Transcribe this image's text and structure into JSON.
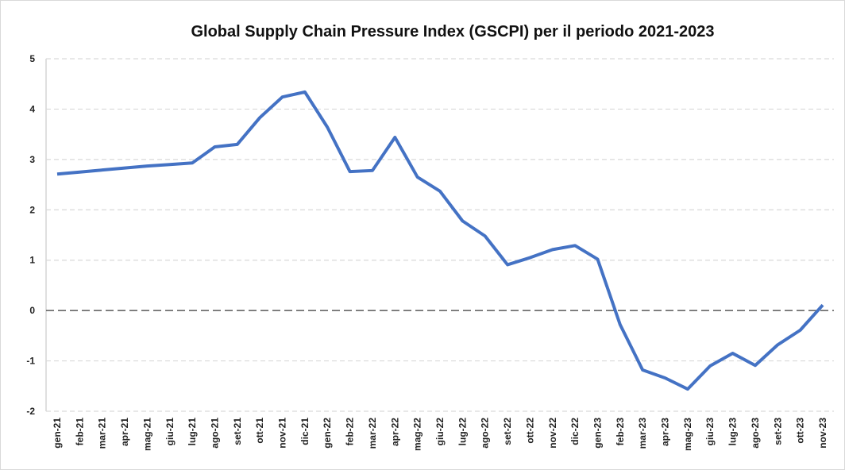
{
  "chart_data": {
    "type": "line",
    "title": "Global Supply Chain Pressure Index (GSCPI) per il periodo 2021-2023",
    "categories": [
      "gen-21",
      "feb-21",
      "mar-21",
      "apr-21",
      "mag-21",
      "giu-21",
      "lug-21",
      "ago-21",
      "set-21",
      "ott-21",
      "nov-21",
      "dic-21",
      "gen-22",
      "feb-22",
      "mar-22",
      "apr-22",
      "mag-22",
      "giu-22",
      "lug-22",
      "ago-22",
      "set-22",
      "ott-22",
      "nov-22",
      "dic-22",
      "gen-23",
      "feb-23",
      "mar-23",
      "apr-23",
      "mag-23",
      "giu-23",
      "lug-23",
      "ago-23",
      "set-23",
      "ott-23",
      "nov-23"
    ],
    "series": [
      {
        "name": "GSCPI",
        "color": "#4472c4",
        "values": [
          2.71,
          2.75,
          2.79,
          2.83,
          2.87,
          2.9,
          2.93,
          3.25,
          3.3,
          3.83,
          4.24,
          4.34,
          3.64,
          2.76,
          2.78,
          3.44,
          2.65,
          2.37,
          1.78,
          1.48,
          0.91,
          1.05,
          1.21,
          1.29,
          1.02,
          -0.28,
          -1.18,
          -1.34,
          -1.56,
          -1.1,
          -0.85,
          -1.09,
          -0.68,
          -0.39,
          0.11
        ]
      }
    ],
    "ylim": [
      -2,
      5
    ],
    "yticks": [
      -2,
      -1,
      0,
      1,
      2,
      3,
      4,
      5
    ],
    "grid": true
  }
}
